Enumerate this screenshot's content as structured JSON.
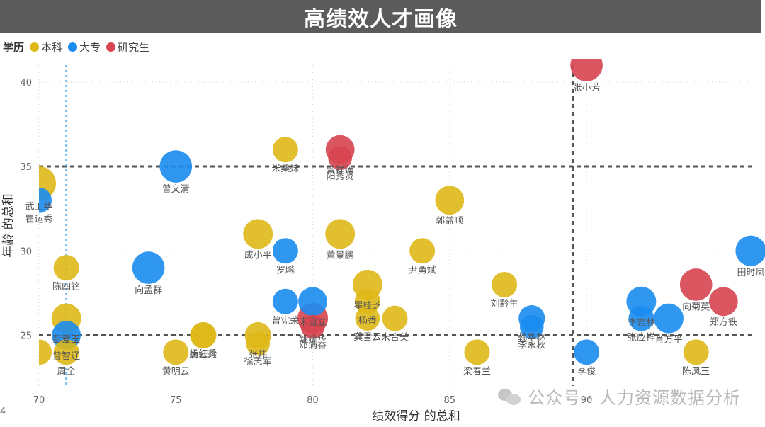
{
  "chart_data": {
    "type": "scatter",
    "title": "高绩效人才画像",
    "xlabel": "绩效得分 的总和",
    "ylabel": "年龄 的总和",
    "xlim": [
      70,
      96
    ],
    "ylim": [
      22,
      41
    ],
    "xticks": [
      70,
      75,
      80,
      85,
      90
    ],
    "yticks": [
      25,
      30,
      35,
      40
    ],
    "legend": {
      "title": "学历",
      "position": "top-left",
      "items": [
        {
          "name": "本科",
          "color": "#DEB817"
        },
        {
          "name": "大专",
          "color": "#1A8CF0"
        },
        {
          "name": "研究生",
          "color": "#D64550"
        }
      ]
    },
    "reference_lines": {
      "vertical": [
        {
          "x": 71,
          "style": "dotted",
          "color": "#7DBEF2"
        },
        {
          "x": 89.5,
          "style": "dashed",
          "color": "#555555"
        }
      ],
      "horizontal": [
        {
          "y": 35,
          "style": "dashed",
          "color": "#555555"
        },
        {
          "y": 25,
          "style": "dashed",
          "color": "#555555"
        }
      ]
    },
    "points": [
      {
        "name": "张小芳",
        "x": 90,
        "y": 41,
        "group": "研究生",
        "size": 0.9
      },
      {
        "name": "曾祥莲",
        "x": 81,
        "y": 36,
        "group": "研究生",
        "size": 0.7
      },
      {
        "name": "阳秀贤",
        "x": 81,
        "y": 35.5,
        "group": "研究生",
        "size": 0.4
      },
      {
        "name": "米桑妹",
        "x": 79,
        "y": 36,
        "group": "本科",
        "size": 0.5
      },
      {
        "name": "曾文清",
        "x": 75,
        "y": 35,
        "group": "大专",
        "size": 0.9
      },
      {
        "name": "武卫华",
        "x": 70,
        "y": 34,
        "group": "本科",
        "size": 1.0
      },
      {
        "name": "瞿运秀",
        "x": 70,
        "y": 33,
        "group": "大专",
        "size": 0.5
      },
      {
        "name": "郭益顺",
        "x": 85,
        "y": 33,
        "group": "本科",
        "size": 0.7
      },
      {
        "name": "成小平",
        "x": 78,
        "y": 31,
        "group": "本科",
        "size": 0.75
      },
      {
        "name": "黄景鹏",
        "x": 81,
        "y": 31,
        "group": "本科",
        "size": 0.75
      },
      {
        "name": "罗飚",
        "x": 79,
        "y": 30,
        "group": "大专",
        "size": 0.5
      },
      {
        "name": "尹勇斌",
        "x": 84,
        "y": 30,
        "group": "本科",
        "size": 0.5
      },
      {
        "name": "田时凤",
        "x": 96,
        "y": 30,
        "group": "大专",
        "size": 0.8
      },
      {
        "name": "陈四铭",
        "x": 71,
        "y": 29,
        "group": "本科",
        "size": 0.5
      },
      {
        "name": "向孟群",
        "x": 74,
        "y": 29,
        "group": "大专",
        "size": 0.9
      },
      {
        "name": "宋自立",
        "x": 80,
        "y": 27,
        "group": "大专",
        "size": 0.7
      },
      {
        "name": "瞿桂芝",
        "x": 82,
        "y": 28,
        "group": "本科",
        "size": 0.75
      },
      {
        "name": "刘黔生",
        "x": 87,
        "y": 28,
        "group": "本科",
        "size": 0.5
      },
      {
        "name": "曾宪荣",
        "x": 79,
        "y": 27,
        "group": "大专",
        "size": 0.5
      },
      {
        "name": "姚建华",
        "x": 80,
        "y": 26,
        "group": "研究生",
        "size": 0.8
      },
      {
        "name": "杨香",
        "x": 82,
        "y": 27,
        "group": "本科",
        "size": 0.5
      },
      {
        "name": "龚雪云",
        "x": 82,
        "y": 26,
        "group": "本科",
        "size": 0.45
      },
      {
        "name": "宋合美",
        "x": 83,
        "y": 26,
        "group": "本科",
        "size": 0.5
      },
      {
        "name": "韩华林",
        "x": 88,
        "y": 26,
        "group": "大专",
        "size": 0.55
      },
      {
        "name": "李永秋",
        "x": 88,
        "y": 25.5,
        "group": "大专",
        "size": 0.4
      },
      {
        "name": "李岩林",
        "x": 92,
        "y": 27,
        "group": "大专",
        "size": 0.75
      },
      {
        "name": "向菊英",
        "x": 94,
        "y": 28,
        "group": "研究生",
        "size": 0.9
      },
      {
        "name": "张应祥",
        "x": 92,
        "y": 26,
        "group": "大专",
        "size": 0.5
      },
      {
        "name": "郑方铁",
        "x": 95,
        "y": 27,
        "group": "研究生",
        "size": 0.7
      },
      {
        "name": "肖方平",
        "x": 93,
        "y": 26,
        "group": "大专",
        "size": 0.75
      },
      {
        "name": "邓满香",
        "x": 80,
        "y": 25.5,
        "group": "研究生",
        "size": 0.4
      },
      {
        "name": "曾智辽",
        "x": 71,
        "y": 25,
        "group": "大专",
        "size": 0.7
      },
      {
        "name": "唐云珍",
        "x": 76,
        "y": 25,
        "group": "本科",
        "size": 0.55
      },
      {
        "name": "张炜",
        "x": 78,
        "y": 25,
        "group": "本科",
        "size": 0.55
      },
      {
        "name": "彭爱玉",
        "x": 71,
        "y": 26,
        "group": "本科",
        "size": 0.75
      },
      {
        "name": "周全",
        "x": 71,
        "y": 24,
        "group": "本科",
        "size": 0.5
      },
      {
        "name": "黄明云",
        "x": 75,
        "y": 24,
        "group": "本科",
        "size": 0.5
      },
      {
        "name": "杨红兵",
        "x": 76,
        "y": 25,
        "group": "本科",
        "size": 0.45
      },
      {
        "name": "徐志军",
        "x": 78,
        "y": 24.5,
        "group": "本科",
        "size": 0.4
      },
      {
        "name": "梁春兰",
        "x": 86,
        "y": 24,
        "group": "本科",
        "size": 0.5
      },
      {
        "name": "李俊",
        "x": 90,
        "y": 24,
        "group": "大专",
        "size": 0.5
      },
      {
        "name": "陈凤玉",
        "x": 94,
        "y": 24,
        "group": "本科",
        "size": 0.5
      },
      {
        "name": "",
        "x": 70,
        "y": 24,
        "group": "本科",
        "size": 0.5
      }
    ]
  },
  "watermark": {
    "text": "公众号 · 人力资源数据分析"
  },
  "corner_mark": "4"
}
